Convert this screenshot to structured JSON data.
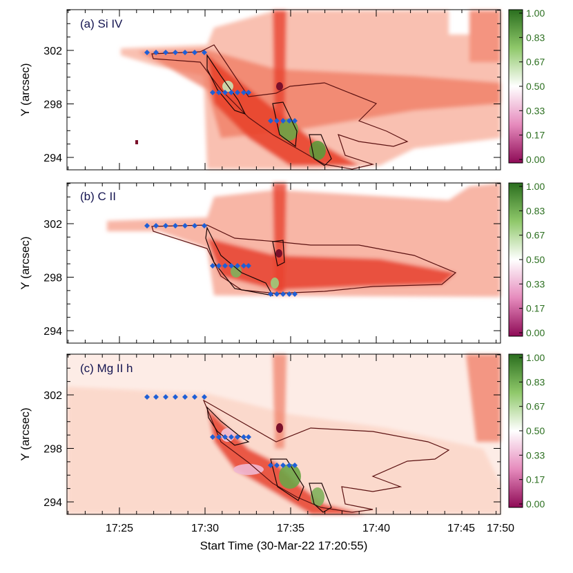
{
  "chart_data": {
    "type": "heatmap",
    "xlabel": "Start Time (30-Mar-22 17:20:55)",
    "x_ticks": [
      "17:25",
      "17:30",
      "17:35",
      "17:40",
      "17:45",
      "17:50"
    ],
    "y_ticks": [
      "294",
      "298",
      "302"
    ],
    "colorbar_ticks": [
      "1.00",
      "0.83",
      "0.67",
      "0.50",
      "0.33",
      "0.17",
      "0.00"
    ],
    "colors": {
      "low": "#8e0a56",
      "mid": "#ffffff",
      "high": "#2a6e1e",
      "intensity": "#e8422e",
      "marker": "#1f5fd6",
      "contour": "#5a1010"
    },
    "panels": [
      {
        "label": "(a) Si IV",
        "ylabel": "Y (arcsec)",
        "markers": [
          [
            17.32,
            301.7
          ],
          [
            17.38,
            301.7
          ],
          [
            17.44,
            301.7
          ],
          [
            17.5,
            301.7
          ],
          [
            17.56,
            301.7
          ],
          [
            17.62,
            301.7
          ],
          [
            17.68,
            301.7
          ],
          [
            17.51,
            298.8
          ],
          [
            17.52,
            298.8
          ],
          [
            17.53,
            298.8
          ],
          [
            17.54,
            298.8
          ],
          [
            17.55,
            298.8
          ],
          [
            17.58,
            296.6
          ],
          [
            17.59,
            296.6
          ],
          [
            17.6,
            296.6
          ]
        ]
      },
      {
        "label": "(b) C II",
        "ylabel": "Y (arcsec)",
        "markers": [
          [
            17.32,
            301.7
          ],
          [
            17.38,
            301.7
          ],
          [
            17.44,
            301.7
          ],
          [
            17.5,
            301.7
          ],
          [
            17.56,
            301.7
          ],
          [
            17.62,
            301.7
          ],
          [
            17.68,
            301.7
          ],
          [
            17.51,
            298.8
          ],
          [
            17.52,
            298.8
          ],
          [
            17.53,
            298.8
          ],
          [
            17.54,
            298.8
          ],
          [
            17.58,
            296.6
          ],
          [
            17.59,
            296.6
          ],
          [
            17.6,
            296.6
          ]
        ]
      },
      {
        "label": "(c) Mg II h",
        "ylabel": "Y (arcsec)",
        "markers": [
          [
            17.32,
            301.7
          ],
          [
            17.38,
            301.7
          ],
          [
            17.44,
            301.7
          ],
          [
            17.5,
            301.7
          ],
          [
            17.56,
            301.7
          ],
          [
            17.62,
            301.7
          ],
          [
            17.68,
            301.7
          ],
          [
            17.51,
            298.8
          ],
          [
            17.52,
            298.8
          ],
          [
            17.53,
            298.8
          ],
          [
            17.54,
            298.8
          ],
          [
            17.58,
            296.6
          ],
          [
            17.59,
            296.6
          ],
          [
            17.6,
            296.6
          ]
        ]
      }
    ]
  }
}
